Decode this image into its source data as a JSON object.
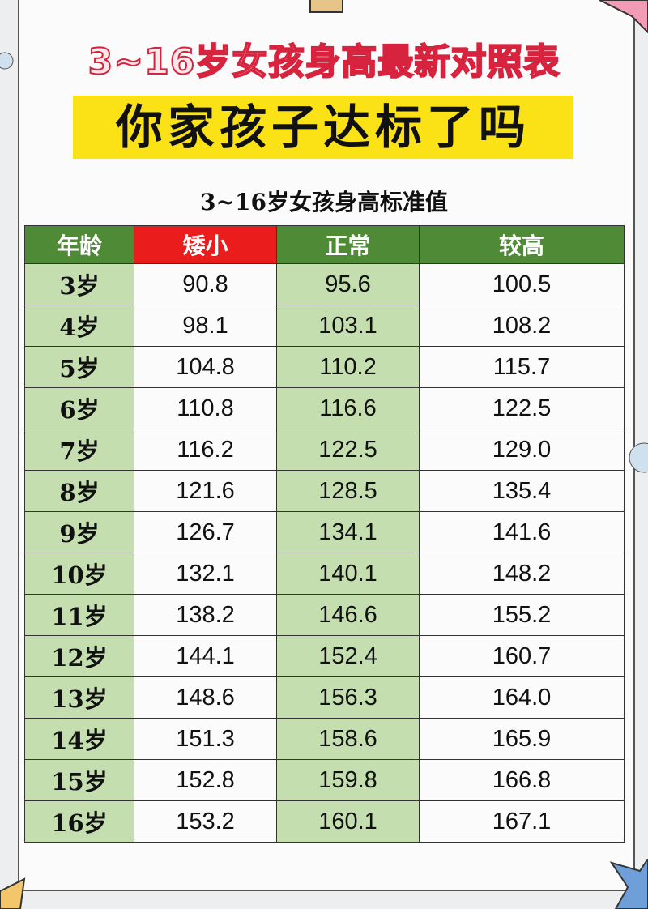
{
  "title": "3~16岁女孩身高最新对照表",
  "banner": "你家孩子达标了吗",
  "subtitle": "3~16岁女孩身高标准值",
  "colors": {
    "header_green": "#4f8a37",
    "header_red": "#ea1c1c",
    "cell_green": "#c4deb0",
    "banner_yellow": "#fbe216",
    "title_red": "#d8233f"
  },
  "table": {
    "headers": [
      "年龄",
      "矮小",
      "正常",
      "较高"
    ],
    "rows": [
      [
        "3岁",
        "90.8",
        "95.6",
        "100.5"
      ],
      [
        "4岁",
        "98.1",
        "103.1",
        "108.2"
      ],
      [
        "5岁",
        "104.8",
        "110.2",
        "115.7"
      ],
      [
        "6岁",
        "110.8",
        "116.6",
        "122.5"
      ],
      [
        "7岁",
        "116.2",
        "122.5",
        "129.0"
      ],
      [
        "8岁",
        "121.6",
        "128.5",
        "135.4"
      ],
      [
        "9岁",
        "126.7",
        "134.1",
        "141.6"
      ],
      [
        "10岁",
        "132.1",
        "140.1",
        "148.2"
      ],
      [
        "11岁",
        "138.2",
        "146.6",
        "155.2"
      ],
      [
        "12岁",
        "144.1",
        "152.4",
        "160.7"
      ],
      [
        "13岁",
        "148.6",
        "156.3",
        "164.0"
      ],
      [
        "14岁",
        "151.3",
        "158.6",
        "165.9"
      ],
      [
        "15岁",
        "152.8",
        "159.8",
        "166.8"
      ],
      [
        "16岁",
        "153.2",
        "160.1",
        "167.1"
      ]
    ]
  }
}
